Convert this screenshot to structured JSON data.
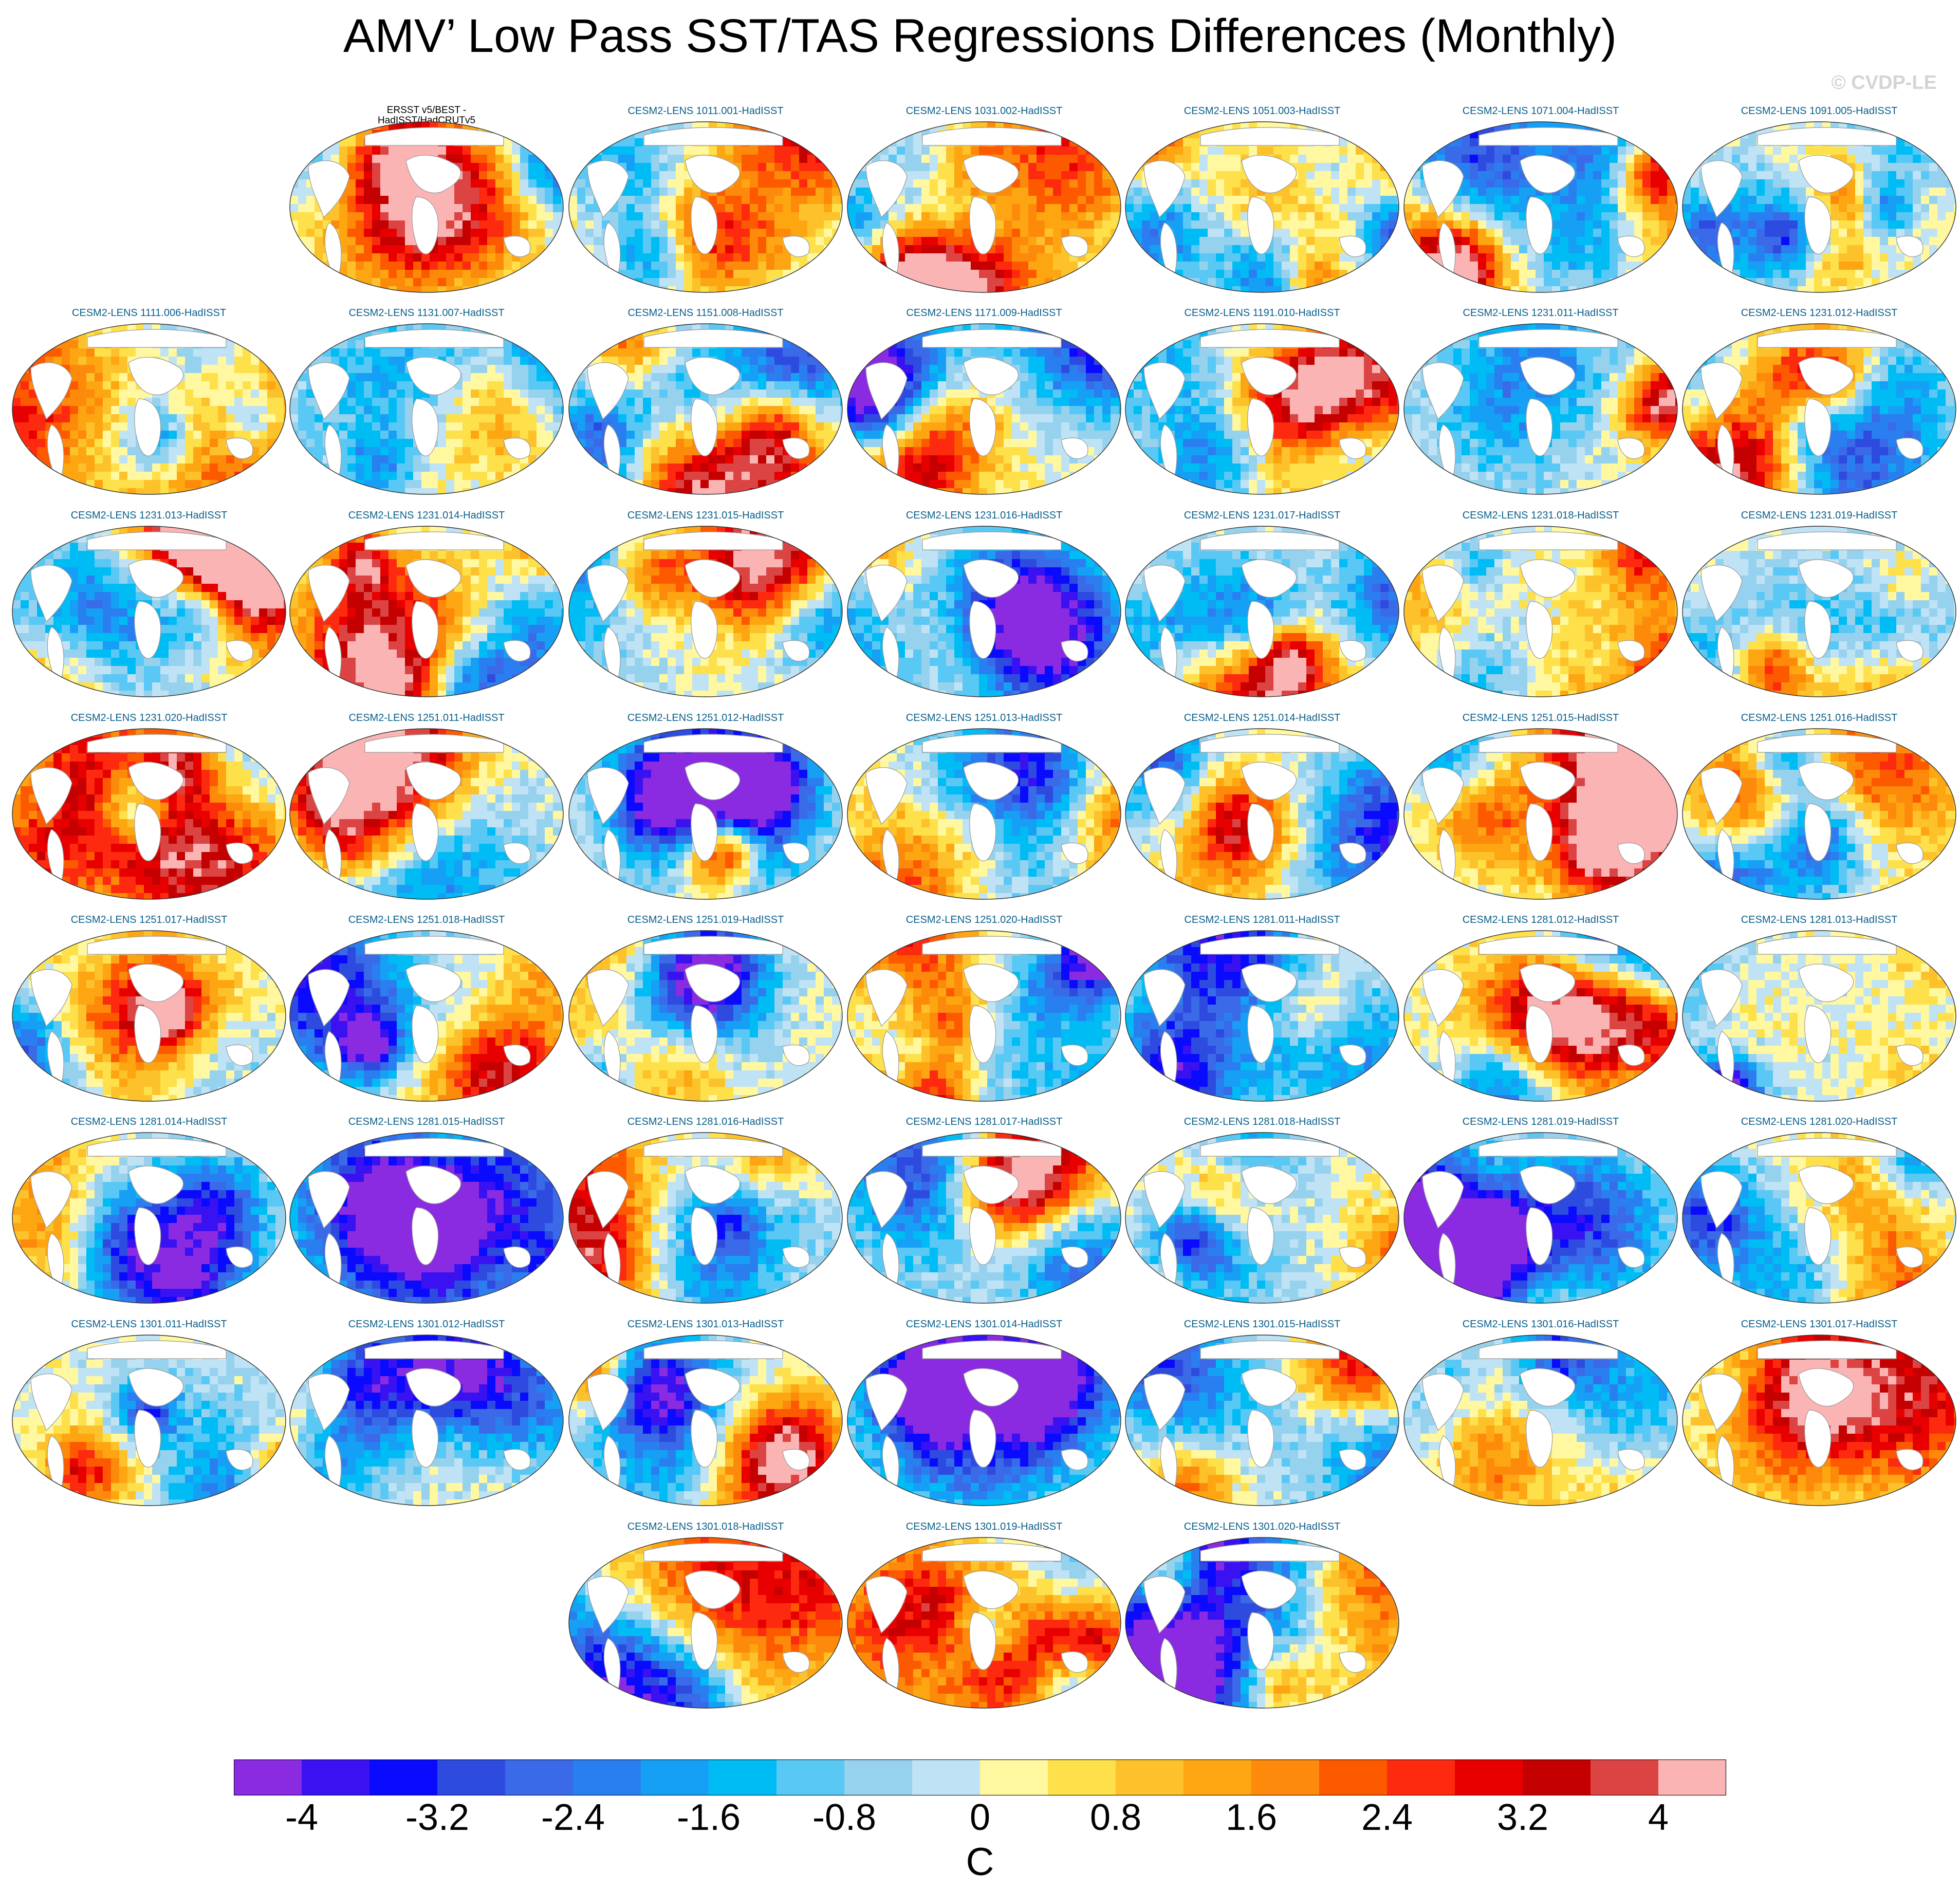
{
  "title": "AMV’ Low Pass SST/TAS Regressions Differences (Monthly)",
  "watermark": "© CVDP-LE",
  "panels": [
    {
      "label": "ERSST v5/BEST - HadISST/HadCRUTv5",
      "obs": true
    },
    {
      "label": "CESM2-LENS 1011.001-HadISST"
    },
    {
      "label": "CESM2-LENS 1031.002-HadISST"
    },
    {
      "label": "CESM2-LENS 1051.003-HadISST"
    },
    {
      "label": "CESM2-LENS 1071.004-HadISST"
    },
    {
      "label": "CESM2-LENS 1091.005-HadISST"
    },
    {
      "label": "CESM2-LENS 1111.006-HadISST"
    },
    {
      "label": "CESM2-LENS 1131.007-HadISST"
    },
    {
      "label": "CESM2-LENS 1151.008-HadISST"
    },
    {
      "label": "CESM2-LENS 1171.009-HadISST"
    },
    {
      "label": "CESM2-LENS 1191.010-HadISST"
    },
    {
      "label": "CESM2-LENS 1231.011-HadISST"
    },
    {
      "label": "CESM2-LENS 1231.012-HadISST"
    },
    {
      "label": "CESM2-LENS 1231.013-HadISST"
    },
    {
      "label": "CESM2-LENS 1231.014-HadISST"
    },
    {
      "label": "CESM2-LENS 1231.015-HadISST"
    },
    {
      "label": "CESM2-LENS 1231.016-HadISST"
    },
    {
      "label": "CESM2-LENS 1231.017-HadISST"
    },
    {
      "label": "CESM2-LENS 1231.018-HadISST"
    },
    {
      "label": "CESM2-LENS 1231.019-HadISST"
    },
    {
      "label": "CESM2-LENS 1231.020-HadISST"
    },
    {
      "label": "CESM2-LENS 1251.011-HadISST"
    },
    {
      "label": "CESM2-LENS 1251.012-HadISST"
    },
    {
      "label": "CESM2-LENS 1251.013-HadISST"
    },
    {
      "label": "CESM2-LENS 1251.014-HadISST"
    },
    {
      "label": "CESM2-LENS 1251.015-HadISST"
    },
    {
      "label": "CESM2-LENS 1251.016-HadISST"
    },
    {
      "label": "CESM2-LENS 1251.017-HadISST"
    },
    {
      "label": "CESM2-LENS 1251.018-HadISST"
    },
    {
      "label": "CESM2-LENS 1251.019-HadISST"
    },
    {
      "label": "CESM2-LENS 1251.020-HadISST"
    },
    {
      "label": "CESM2-LENS 1281.011-HadISST"
    },
    {
      "label": "CESM2-LENS 1281.012-HadISST"
    },
    {
      "label": "CESM2-LENS 1281.013-HadISST"
    },
    {
      "label": "CESM2-LENS 1281.014-HadISST"
    },
    {
      "label": "CESM2-LENS 1281.015-HadISST"
    },
    {
      "label": "CESM2-LENS 1281.016-HadISST"
    },
    {
      "label": "CESM2-LENS 1281.017-HadISST"
    },
    {
      "label": "CESM2-LENS 1281.018-HadISST"
    },
    {
      "label": "CESM2-LENS 1281.019-HadISST"
    },
    {
      "label": "CESM2-LENS 1281.020-HadISST"
    },
    {
      "label": "CESM2-LENS 1301.011-HadISST"
    },
    {
      "label": "CESM2-LENS 1301.012-HadISST"
    },
    {
      "label": "CESM2-LENS 1301.013-HadISST"
    },
    {
      "label": "CESM2-LENS 1301.014-HadISST"
    },
    {
      "label": "CESM2-LENS 1301.015-HadISST"
    },
    {
      "label": "CESM2-LENS 1301.016-HadISST"
    },
    {
      "label": "CESM2-LENS 1301.017-HadISST"
    },
    {
      "label": "CESM2-LENS 1301.018-HadISST"
    },
    {
      "label": "CESM2-LENS 1301.019-HadISST"
    },
    {
      "label": "CESM2-LENS 1301.020-HadISST"
    }
  ],
  "chart_data": {
    "type": "heatmap",
    "projection": "Robinson (global maps)",
    "title": "AMV’ Low Pass SST/TAS Regressions Differences (Monthly)",
    "units": "C",
    "colorbar": {
      "boundaries": [
        -4.4,
        -4.0,
        -3.6,
        -3.2,
        -2.8,
        -2.4,
        -2.0,
        -1.6,
        -1.2,
        -0.8,
        -0.4,
        0.0,
        0.4,
        0.8,
        1.2,
        1.6,
        2.0,
        2.4,
        2.8,
        3.2,
        3.6,
        4.0,
        4.4
      ],
      "tick_values": [
        -4,
        -3.2,
        -2.4,
        -1.6,
        -0.8,
        0,
        0.8,
        1.6,
        2.4,
        3.2,
        4
      ],
      "tick_labels": [
        "-4",
        "-3.2",
        "-2.4",
        "-1.6",
        "-0.8",
        "0",
        "0.8",
        "1.6",
        "2.4",
        "3.2",
        "4"
      ],
      "colors": [
        "#8a2be2",
        "#3a12f2",
        "#0a0aff",
        "#2e4be0",
        "#3a6ae8",
        "#2a7ff0",
        "#16a0f5",
        "#00bcf5",
        "#5ac8f5",
        "#96d2ee",
        "#bfe3f5",
        "#fff8a0",
        "#fde04a",
        "#fdc22b",
        "#fda612",
        "#fd8a0a",
        "#fd5a00",
        "#fd2a10",
        "#e80000",
        "#c40000",
        "#dc4444",
        "#fbb4b4"
      ]
    },
    "layout": {
      "rows": [
        {
          "columns": [
            2,
            3,
            4,
            5,
            6,
            7
          ]
        },
        {
          "columns": [
            1,
            2,
            3,
            4,
            5,
            6,
            7
          ]
        },
        {
          "columns": [
            1,
            2,
            3,
            4,
            5,
            6,
            7
          ]
        },
        {
          "columns": [
            1,
            2,
            3,
            4,
            5,
            6,
            7
          ]
        },
        {
          "columns": [
            1,
            2,
            3,
            4,
            5,
            6,
            7
          ]
        },
        {
          "columns": [
            1,
            2,
            3,
            4,
            5,
            6,
            7
          ]
        },
        {
          "columns": [
            1,
            2,
            3,
            4,
            5,
            6,
            7
          ]
        },
        {
          "columns": [
            3,
            4,
            5
          ]
        }
      ]
    }
  }
}
